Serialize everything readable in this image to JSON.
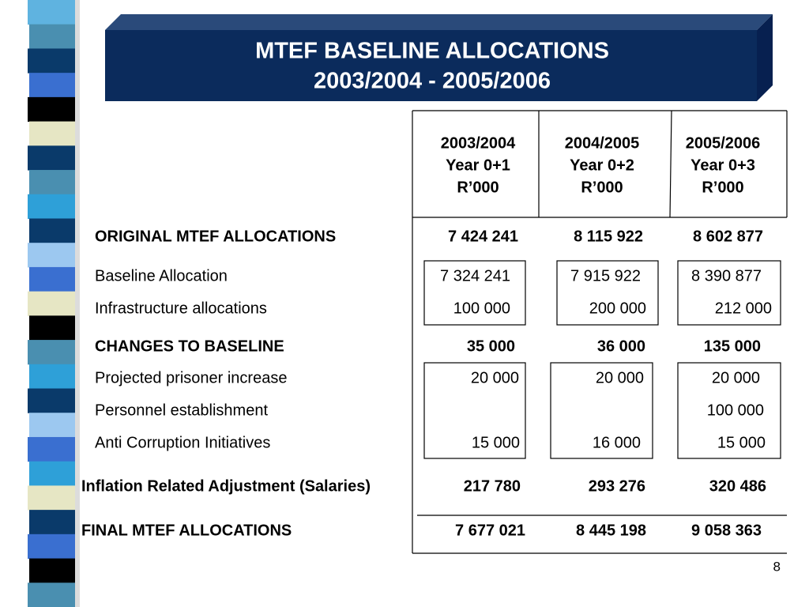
{
  "title": {
    "line1": "MTEF BASELINE ALLOCATIONS",
    "line2": "2003/2004 - 2005/2006"
  },
  "table": {
    "columns": [
      {
        "year": "2003/2004",
        "label": "Year 0+1",
        "unit": "R’000"
      },
      {
        "year": "2004/2005",
        "label": "Year 0+2",
        "unit": "R’000"
      },
      {
        "year": "2005/2006",
        "label": "Year 0+3",
        "unit": "R’000"
      }
    ],
    "rows": [
      {
        "label": "ORIGINAL MTEF  ALLOCATIONS",
        "values": [
          "7 424 241",
          "8 115 922",
          "8 602 877"
        ],
        "bold": true
      },
      {
        "label": "Baseline Allocation",
        "values": [
          "7 324 241",
          "7 915 922",
          "8 390 877"
        ],
        "bold": false
      },
      {
        "label": "Infrastructure allocations",
        "values": [
          "100 000",
          "200 000",
          "212 000"
        ],
        "bold": false
      },
      {
        "label": "CHANGES TO BASELINE",
        "values": [
          "35 000",
          "36 000",
          "135 000"
        ],
        "bold": true
      },
      {
        "label": "Projected prisoner increase",
        "values": [
          "20 000",
          "20 000",
          "20 000"
        ],
        "bold": false
      },
      {
        "label": "Personnel establishment",
        "values": [
          null,
          null,
          "100 000"
        ],
        "bold": false
      },
      {
        "label": "Anti Corruption Initiatives",
        "values": [
          "15 000",
          "16 000",
          "15 000"
        ],
        "bold": false
      },
      {
        "label": "Inflation Related Adjustment (Salaries)",
        "values": [
          "217 780",
          "293 276",
          "320 486"
        ],
        "bold": true
      },
      {
        "label": "FINAL MTEF  ALLOCATIONS",
        "values": [
          "7 677 021",
          "8 445 198",
          "9 058 363"
        ],
        "bold": true
      }
    ]
  },
  "page_number": "8"
}
